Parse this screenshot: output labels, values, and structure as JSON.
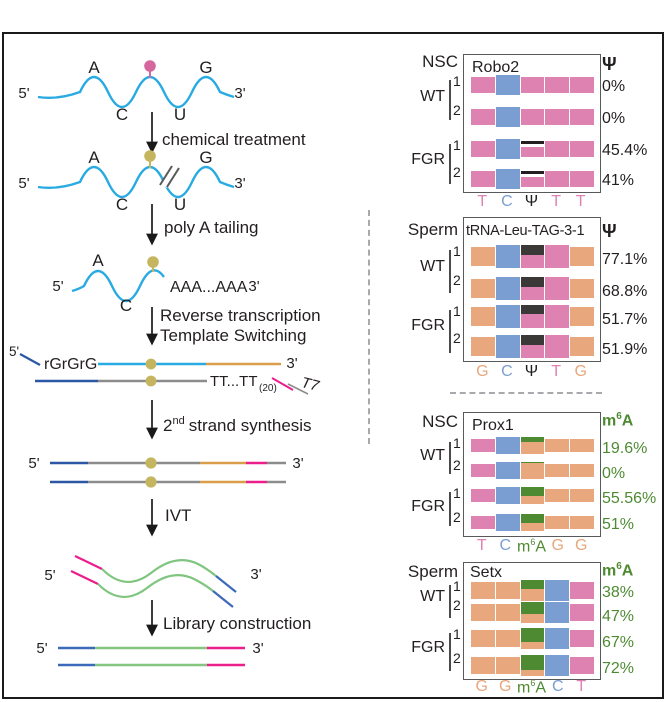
{
  "workflow": {
    "labels": {
      "five_prime": "5'",
      "three_prime": "3'",
      "base_a": "A",
      "base_c": "C",
      "base_u": "U",
      "base_g": "G",
      "rt_primer": "rGrGrG",
      "poly_a_tail": "AAA...AAA",
      "oligo_dt": "TT...TT",
      "oligo_dt_sub": "(20)",
      "t7_promoter": "T7"
    },
    "steps": {
      "chemical_treatment": "chemical treatment",
      "poly_a_tailing": "poly A tailing",
      "reverse_transcription": "Reverse transcription",
      "template_switching": "Template Switching",
      "second_strand_num": "2",
      "second_strand_sup": "nd",
      "second_strand_rest": "strand synthesis",
      "ivt": "IVT",
      "library_construction": "Library construction"
    }
  },
  "mod": {
    "psi": "Ψ",
    "m6a": {
      "base": "m",
      "sup": "6",
      "a": "A"
    }
  },
  "colors": {
    "read_pink": "#DE82B2",
    "read_blue": "#7A9ED2",
    "read_orange": "#E8A77C",
    "site_black": "#3B3838",
    "m6a_green": "#4E8A32",
    "rna_blue": "#29ABE2",
    "mod_pink": "#D4679D",
    "mod_yellow": "#C5B55F",
    "polya_orange": "#D99E4A",
    "primer_darkblue": "#2B57A5",
    "strand_gray": "#8C8C8C",
    "adapter_magenta": "#EC1E8C",
    "ivt_green": "#7FC57F",
    "text_black": "#231F20"
  },
  "panels": [
    {
      "group": "NSC",
      "gene": "Robo2",
      "mod": "psi",
      "segments": [
        "pink",
        "blue",
        "pink",
        "pink",
        "pink"
      ],
      "tall_segments": [
        1
      ],
      "site_index": 2,
      "site_marker": "line",
      "conditions": [
        {
          "name": "WT",
          "reps": [
            "1",
            "2"
          ]
        },
        {
          "name": "FGR",
          "reps": [
            "1",
            "2"
          ]
        }
      ],
      "rows": [
        {
          "value": "0%",
          "site_fill": 0
        },
        {
          "value": "0%",
          "site_fill": 0
        },
        {
          "value": "45.4%",
          "site_fill": 1
        },
        {
          "value": "41%",
          "site_fill": 1
        }
      ],
      "bases": [
        {
          "text": "T",
          "color": "pink"
        },
        {
          "text": "C",
          "color": "blue"
        },
        {
          "sym": "psi",
          "color": "black"
        },
        {
          "text": "T",
          "color": "pink"
        },
        {
          "text": "T",
          "color": "pink"
        }
      ]
    },
    {
      "group": "Sperm",
      "gene": "tRNA-Leu-TAG-3-1",
      "mod": "psi",
      "segments": [
        "orange",
        "blue",
        "pink",
        "pink",
        "orange"
      ],
      "tall_segments": [
        1,
        2,
        3
      ],
      "site_index": 2,
      "site_marker": "black_cap",
      "conditions": [
        {
          "name": "WT",
          "reps": [
            "1",
            "2"
          ]
        },
        {
          "name": "FGR",
          "reps": [
            "1",
            "2"
          ]
        }
      ],
      "rows": [
        {
          "value": "77.1%",
          "site_fill": 0.42
        },
        {
          "value": "68.8%",
          "site_fill": 0.45
        },
        {
          "value": "51.7%",
          "site_fill": 0.4
        },
        {
          "value": "51.9%",
          "site_fill": 0.45
        }
      ],
      "bases": [
        {
          "text": "G",
          "color": "orange"
        },
        {
          "text": "C",
          "color": "blue"
        },
        {
          "sym": "psi",
          "color": "black"
        },
        {
          "text": "T",
          "color": "pink"
        },
        {
          "text": "G",
          "color": "orange"
        }
      ]
    },
    {
      "group": "NSC",
      "gene": "Prox1",
      "mod": "m6a",
      "segments": [
        "pink",
        "blue",
        "orange",
        "orange",
        "orange"
      ],
      "tall_segments": [
        1,
        2
      ],
      "site_index": 2,
      "site_marker": "green_cap",
      "conditions": [
        {
          "name": "WT",
          "reps": [
            "1",
            "2"
          ]
        },
        {
          "name": "FGR",
          "reps": [
            "1",
            "2"
          ]
        }
      ],
      "rows": [
        {
          "value": "19.6%",
          "site_fill": 0.3
        },
        {
          "value": "0%",
          "site_fill": 0.07
        },
        {
          "value": "55.56%",
          "site_fill": 0.55
        },
        {
          "value": "51%",
          "site_fill": 0.5
        }
      ],
      "bases": [
        {
          "text": "T",
          "color": "pink"
        },
        {
          "text": "C",
          "color": "blue"
        },
        {
          "sym": "m6a",
          "color": "green"
        },
        {
          "text": "G",
          "color": "orange"
        },
        {
          "text": "G",
          "color": "orange"
        }
      ]
    },
    {
      "group": "Sperm",
      "gene": "Setx",
      "mod": "m6a",
      "segments": [
        "orange",
        "orange",
        "orange",
        "blue",
        "pink"
      ],
      "tall_segments": [
        2,
        3
      ],
      "site_index": 2,
      "site_marker": "green_cap",
      "conditions": [
        {
          "name": "WT",
          "reps": [
            "1",
            "2"
          ]
        },
        {
          "name": "FGR",
          "reps": [
            "1",
            "2"
          ]
        }
      ],
      "rows": [
        {
          "value": "38%",
          "site_fill": 0.45
        },
        {
          "value": "47%",
          "site_fill": 0.55
        },
        {
          "value": "67%",
          "site_fill": 0.65
        },
        {
          "value": "72%",
          "site_fill": 0.7
        }
      ],
      "bases": [
        {
          "text": "G",
          "color": "orange"
        },
        {
          "text": "G",
          "color": "orange"
        },
        {
          "sym": "m6a",
          "color": "green"
        },
        {
          "text": "C",
          "color": "blue"
        },
        {
          "text": "T",
          "color": "pink"
        }
      ]
    }
  ]
}
